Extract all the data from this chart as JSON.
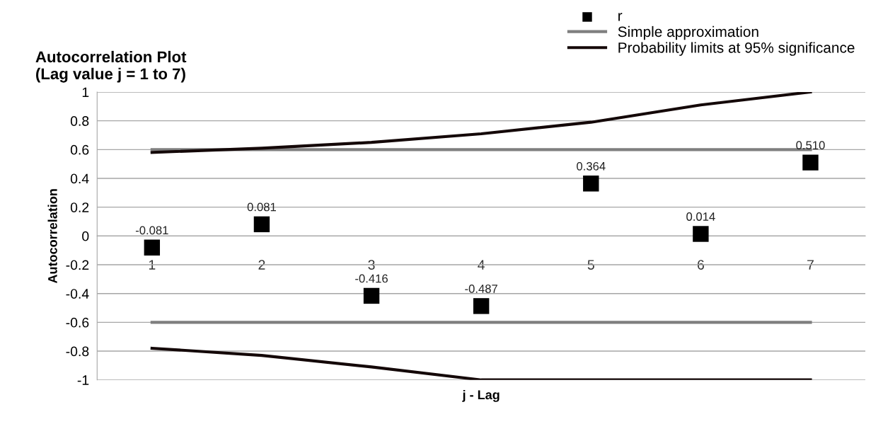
{
  "chart_data": {
    "type": "scatter",
    "title": "Autocorrelation Plot\n(Lag value j = 1 to 7)",
    "xlabel": "j - Lag",
    "ylabel": "Autocorrelation",
    "categories": [
      "1",
      "2",
      "3",
      "4",
      "5",
      "6",
      "7"
    ],
    "series": [
      {
        "name": "r",
        "type": "scatter",
        "color": "#000000",
        "marker": "square",
        "data_labels": true,
        "values": [
          -0.081,
          0.081,
          -0.416,
          -0.487,
          0.364,
          0.014,
          0.51
        ],
        "value_labels": [
          "-0.081",
          "0.081",
          "-0.416",
          "-0.487",
          "0.364",
          "0.014",
          "0.510"
        ]
      },
      {
        "name": "Simple approximation",
        "type": "line",
        "color": "#7f7f7f",
        "values": [
          0.6,
          0.6,
          0.6,
          0.6,
          0.6,
          0.6,
          0.6
        ]
      },
      {
        "type": "line",
        "color": "#7f7f7f",
        "values": [
          -0.6,
          -0.6,
          -0.6,
          -0.6,
          -0.6,
          -0.6,
          -0.6
        ]
      },
      {
        "name": "Probability limits at 95% significance",
        "type": "line",
        "color": "#140808",
        "values": [
          0.58,
          0.61,
          0.65,
          0.71,
          0.79,
          0.91,
          1.0
        ]
      },
      {
        "type": "line",
        "color": "#140808",
        "values": [
          -0.78,
          -0.83,
          -0.91,
          -1.0,
          -1.0,
          -1.0,
          -1.0
        ]
      }
    ],
    "ylim": [
      -1,
      1
    ],
    "yticks": [
      {
        "value": -1,
        "label": "-1"
      },
      {
        "value": -0.8,
        "label": "-0.8"
      },
      {
        "value": -0.6,
        "label": "-0.6"
      },
      {
        "value": -0.4,
        "label": "-0.4"
      },
      {
        "value": -0.2,
        "label": "-0.2"
      },
      0,
      0.2,
      0.4,
      0.6,
      0.8,
      1
    ],
    "grid": "y",
    "legend": "top right"
  }
}
